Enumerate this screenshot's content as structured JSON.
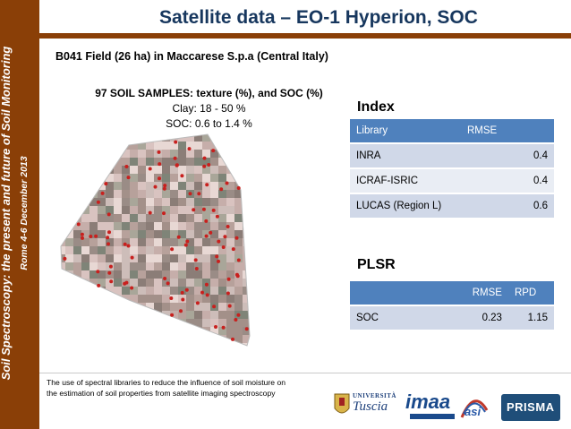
{
  "sidebar": {
    "line1": "Soil Spectroscopy: the present and future of Soil Monitoring",
    "line2": "Rome 4-6  December 2013"
  },
  "title": "Satellite data – EO-1 Hyperion, SOC",
  "subtitle": "B041 Field (26 ha) in Maccarese S.p.a (Central Italy)",
  "samples": {
    "heading": "97 SOIL SAMPLES: texture (%), and SOC (%)",
    "clay": "Clay: 18 - 50 %",
    "soc": "SOC: 0.6 to 1.4 %"
  },
  "index_section": {
    "title": "Index",
    "headers": [
      "Library",
      "RMSE"
    ],
    "rows": [
      {
        "library": "INRA",
        "rmse": "0.4"
      },
      {
        "library": "ICRAF-ISRIC",
        "rmse": "0.4"
      },
      {
        "library": "LUCAS (Region L)",
        "rmse": "0.6"
      }
    ]
  },
  "plsr_section": {
    "title": "PLSR",
    "headers": [
      "",
      "RMSE",
      "RPD"
    ],
    "row": {
      "label": "SOC",
      "rmse": "0.23",
      "rpd": "1.15"
    }
  },
  "footer": {
    "line1": "The use of spectral libraries to reduce the influence of soil moisture on",
    "line2": "the estimation of soil properties from satellite imaging spectroscopy"
  },
  "logos": {
    "univ_top": "UNIVERSITÀ",
    "univ_name": "Tuscia",
    "imaa": "imaa",
    "asi": "asi",
    "prisma": "PRISMA"
  },
  "colors": {
    "sidebar": "#8a3f07",
    "title": "#17375e",
    "table_header": "#4f81bd",
    "row_odd": "#d0d8e8",
    "row_even": "#e9edf4"
  }
}
